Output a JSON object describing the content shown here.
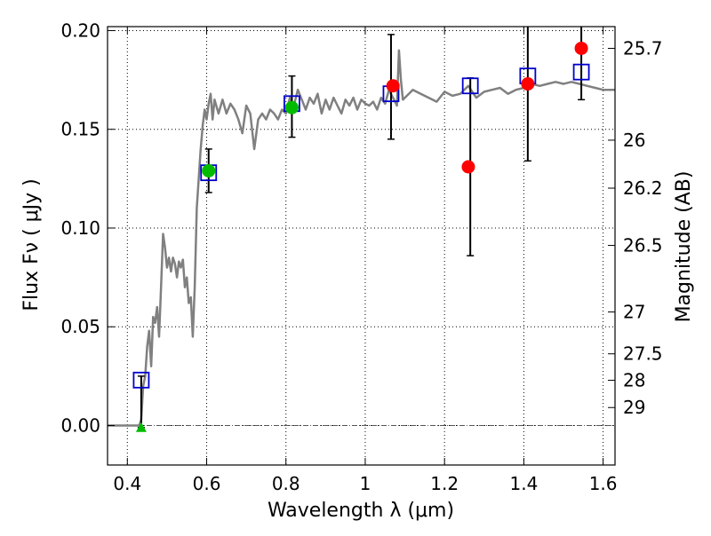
{
  "chart_data": {
    "type": "scatter",
    "title": "",
    "xlabel": "Wavelength  λ (μm)",
    "ylabel": "Flux  Fν  ( μJy )",
    "ylabel_right": "Magnitude (AB)",
    "xlim": [
      0.35,
      1.63
    ],
    "ylim": [
      -0.02,
      0.202
    ],
    "grid": true,
    "xticks": [
      0.4,
      0.6,
      0.8,
      1.0,
      1.2,
      1.4,
      1.6
    ],
    "xtick_labels": [
      "0.4",
      "0.6",
      "0.8",
      "1",
      "1.2",
      "1.4",
      "1.6"
    ],
    "yticks": [
      0.0,
      0.05,
      0.1,
      0.15,
      0.2
    ],
    "ytick_labels": [
      "0.00",
      "0.05",
      "0.10",
      "0.15",
      "0.20"
    ],
    "right_ticks": [
      {
        "label": "25.7",
        "flux": 0.191
      },
      {
        "label": "26",
        "flux": 0.1445
      },
      {
        "label": "26.2",
        "flux": 0.1202
      },
      {
        "label": "26.5",
        "flux": 0.0912
      },
      {
        "label": "27",
        "flux": 0.0575
      },
      {
        "label": "27.5",
        "flux": 0.0363
      },
      {
        "label": "28",
        "flux": 0.0229
      },
      {
        "label": "29",
        "flux": 0.0091
      }
    ],
    "series": [
      {
        "kind": "line",
        "color": "#808080",
        "x": [
          0.35,
          0.42,
          0.43,
          0.435,
          0.44,
          0.445,
          0.45,
          0.455,
          0.46,
          0.465,
          0.47,
          0.475,
          0.48,
          0.485,
          0.49,
          0.495,
          0.5,
          0.505,
          0.51,
          0.515,
          0.52,
          0.525,
          0.53,
          0.535,
          0.54,
          0.545,
          0.55,
          0.555,
          0.56,
          0.565,
          0.57,
          0.575,
          0.58,
          0.585,
          0.59,
          0.595,
          0.6,
          0.605,
          0.61,
          0.615,
          0.62,
          0.63,
          0.64,
          0.65,
          0.66,
          0.67,
          0.68,
          0.69,
          0.7,
          0.71,
          0.72,
          0.73,
          0.74,
          0.75,
          0.76,
          0.77,
          0.78,
          0.79,
          0.8,
          0.81,
          0.82,
          0.83,
          0.84,
          0.85,
          0.86,
          0.87,
          0.88,
          0.89,
          0.9,
          0.91,
          0.92,
          0.93,
          0.94,
          0.95,
          0.96,
          0.97,
          0.98,
          0.99,
          1.0,
          1.01,
          1.02,
          1.03,
          1.04,
          1.05,
          1.06,
          1.07,
          1.08,
          1.085,
          1.09,
          1.095,
          1.1,
          1.12,
          1.14,
          1.16,
          1.18,
          1.2,
          1.22,
          1.24,
          1.26,
          1.28,
          1.3,
          1.32,
          1.34,
          1.36,
          1.38,
          1.4,
          1.42,
          1.44,
          1.46,
          1.48,
          1.5,
          1.52,
          1.54,
          1.56,
          1.58,
          1.6,
          1.63
        ],
        "values": [
          0.0,
          0.0,
          0.0,
          0.003,
          0.02,
          0.025,
          0.04,
          0.048,
          0.03,
          0.055,
          0.052,
          0.06,
          0.045,
          0.07,
          0.097,
          0.09,
          0.08,
          0.085,
          0.078,
          0.085,
          0.082,
          0.075,
          0.083,
          0.08,
          0.084,
          0.07,
          0.075,
          0.062,
          0.065,
          0.045,
          0.07,
          0.11,
          0.125,
          0.14,
          0.152,
          0.16,
          0.155,
          0.163,
          0.168,
          0.155,
          0.165,
          0.158,
          0.165,
          0.158,
          0.163,
          0.16,
          0.155,
          0.148,
          0.162,
          0.158,
          0.14,
          0.155,
          0.158,
          0.155,
          0.16,
          0.158,
          0.155,
          0.16,
          0.158,
          0.166,
          0.162,
          0.17,
          0.165,
          0.16,
          0.166,
          0.163,
          0.168,
          0.158,
          0.165,
          0.16,
          0.166,
          0.162,
          0.158,
          0.165,
          0.162,
          0.166,
          0.16,
          0.165,
          0.163,
          0.162,
          0.164,
          0.16,
          0.166,
          0.163,
          0.17,
          0.166,
          0.162,
          0.19,
          0.175,
          0.165,
          0.166,
          0.17,
          0.168,
          0.166,
          0.164,
          0.169,
          0.167,
          0.168,
          0.172,
          0.166,
          0.169,
          0.17,
          0.171,
          0.168,
          0.17,
          0.171,
          0.173,
          0.172,
          0.173,
          0.174,
          0.173,
          0.174,
          0.173,
          0.172,
          0.171,
          0.17,
          0.17
        ]
      },
      {
        "kind": "square",
        "color": "#0000cc",
        "x": [
          0.435,
          0.605,
          0.815,
          1.065,
          1.265,
          1.41,
          1.545
        ],
        "values": [
          0.023,
          0.128,
          0.163,
          0.168,
          0.172,
          0.177,
          0.179
        ]
      },
      {
        "kind": "circle",
        "color": "#ff0000",
        "x": [
          1.07,
          1.26,
          1.41,
          1.545
        ],
        "values": [
          0.172,
          0.131,
          0.173,
          0.191
        ]
      },
      {
        "kind": "circle",
        "color": "#00bb00",
        "x": [
          0.605,
          0.815
        ],
        "values": [
          0.129,
          0.161
        ]
      },
      {
        "kind": "triangle",
        "color": "#00bb00",
        "x": [
          0.435
        ],
        "values": [
          -0.001
        ]
      },
      {
        "kind": "errorbar",
        "color": "#000000",
        "x": [
          0.435,
          0.605,
          0.815,
          1.065,
          1.265,
          1.41,
          1.545
        ],
        "low": [
          -0.001,
          0.118,
          0.146,
          0.145,
          0.086,
          0.134,
          0.165
        ],
        "high": [
          0.025,
          0.14,
          0.177,
          0.198,
          0.176,
          0.203,
          0.203
        ]
      }
    ]
  }
}
